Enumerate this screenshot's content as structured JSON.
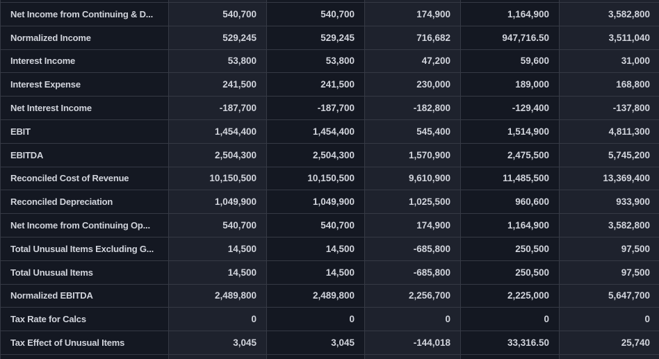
{
  "table": {
    "rows": [
      {
        "label": "Net Income from Continuing & D...",
        "values": [
          "540,700",
          "540,700",
          "174,900",
          "1,164,900",
          "3,582,800"
        ]
      },
      {
        "label": "Normalized Income",
        "values": [
          "529,245",
          "529,245",
          "716,682",
          "947,716.50",
          "3,511,040"
        ]
      },
      {
        "label": "Interest Income",
        "values": [
          "53,800",
          "53,800",
          "47,200",
          "59,600",
          "31,000"
        ]
      },
      {
        "label": "Interest Expense",
        "values": [
          "241,500",
          "241,500",
          "230,000",
          "189,000",
          "168,800"
        ]
      },
      {
        "label": "Net Interest Income",
        "values": [
          "-187,700",
          "-187,700",
          "-182,800",
          "-129,400",
          "-137,800"
        ]
      },
      {
        "label": "EBIT",
        "values": [
          "1,454,400",
          "1,454,400",
          "545,400",
          "1,514,900",
          "4,811,300"
        ]
      },
      {
        "label": "EBITDA",
        "values": [
          "2,504,300",
          "2,504,300",
          "1,570,900",
          "2,475,500",
          "5,745,200"
        ]
      },
      {
        "label": "Reconciled Cost of Revenue",
        "values": [
          "10,150,500",
          "10,150,500",
          "9,610,900",
          "11,485,500",
          "13,369,400"
        ]
      },
      {
        "label": "Reconciled Depreciation",
        "values": [
          "1,049,900",
          "1,049,900",
          "1,025,500",
          "960,600",
          "933,900"
        ]
      },
      {
        "label": "Net Income from Continuing Op...",
        "values": [
          "540,700",
          "540,700",
          "174,900",
          "1,164,900",
          "3,582,800"
        ]
      },
      {
        "label": "Total Unusual Items Excluding G...",
        "values": [
          "14,500",
          "14,500",
          "-685,800",
          "250,500",
          "97,500"
        ]
      },
      {
        "label": "Total Unusual Items",
        "values": [
          "14,500",
          "14,500",
          "-685,800",
          "250,500",
          "97,500"
        ]
      },
      {
        "label": "Normalized EBITDA",
        "values": [
          "2,489,800",
          "2,489,800",
          "2,256,700",
          "2,225,000",
          "5,647,700"
        ]
      },
      {
        "label": "Tax Rate for Calcs",
        "values": [
          "0",
          "0",
          "0",
          "0",
          "0"
        ]
      },
      {
        "label": "Tax Effect of Unusual Items",
        "values": [
          "3,045",
          "3,045",
          "-144,018",
          "33,316.50",
          "25,740"
        ]
      }
    ]
  },
  "colors": {
    "background_dark": "#141822",
    "background_light": "#1e222d",
    "border": "#363a45",
    "text": "#d1d4dc"
  }
}
